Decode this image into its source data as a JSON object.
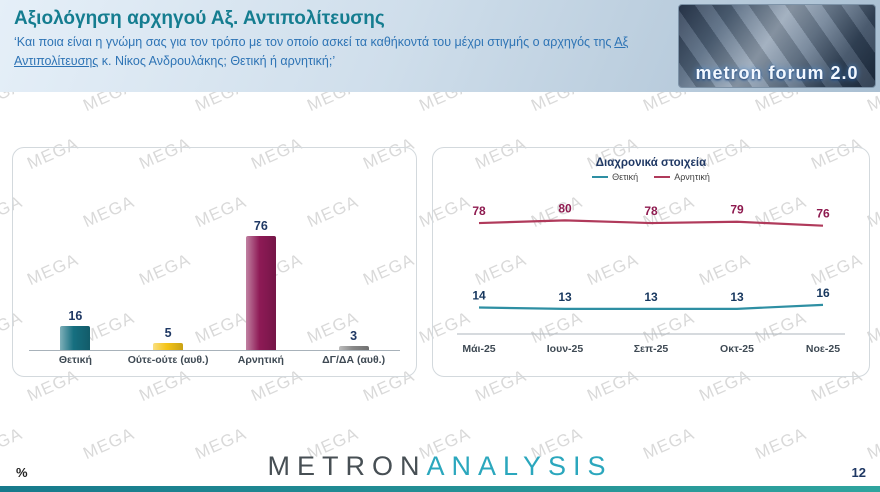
{
  "header": {
    "title": "Αξιολόγηση αρχηγού Αξ. Αντιπολίτευσης",
    "subtitle_pre": "‘Και ποια είναι η γνώμη σας για τον τρόπο με τον οποίο ασκεί τα καθήκοντά του μέχρι στιγμής ο αρχηγός της ",
    "subtitle_underline": "Αξ Αντιπολίτευσης",
    "subtitle_post": " κ. Νίκος Ανδρουλάκης; Θετική ή αρνητική;’",
    "logo_text": "metron forum 2.0"
  },
  "watermark": {
    "text": "MEGA"
  },
  "chart_data": [
    {
      "type": "bar",
      "title": "",
      "categories": [
        "Θετική",
        "Ούτε-ούτε (αυθ.)",
        "Αρνητική",
        "ΔΓ/ΔΑ (αυθ.)"
      ],
      "values": [
        16,
        5,
        76,
        3
      ],
      "colors": [
        "#166f80",
        "#f5c518",
        "#8e1a56",
        "#898989"
      ],
      "ylim": [
        0,
        100
      ],
      "value_label_color": "#1f3864"
    },
    {
      "type": "line",
      "title": "Διαχρονικά στοιχεία",
      "categories": [
        "Μάι-25",
        "Ιουν-25",
        "Σεπ-25",
        "Οκτ-25",
        "Νοε-25"
      ],
      "series": [
        {
          "name": "Θετική",
          "values": [
            14,
            13,
            13,
            13,
            16
          ],
          "color": "#2e8fa3",
          "label_color": "#17375e"
        },
        {
          "name": "Αρνητική",
          "values": [
            78,
            80,
            78,
            79,
            76
          ],
          "color": "#b03a5b",
          "label_color": "#8e1a4f"
        }
      ],
      "ylim": [
        0,
        100
      ],
      "legend_position": "top",
      "grid": false
    }
  ],
  "footer": {
    "percent_label": "%",
    "brand_primary": "METRON",
    "brand_secondary": "ANALYSIS",
    "page_number": "12"
  },
  "colors": {
    "header_title": "#157d90",
    "header_subtitle": "#2e74b5",
    "bottom_bar": "#1d8a92",
    "brand_primary": "#474f54",
    "brand_secondary": "#2ba7bd"
  }
}
